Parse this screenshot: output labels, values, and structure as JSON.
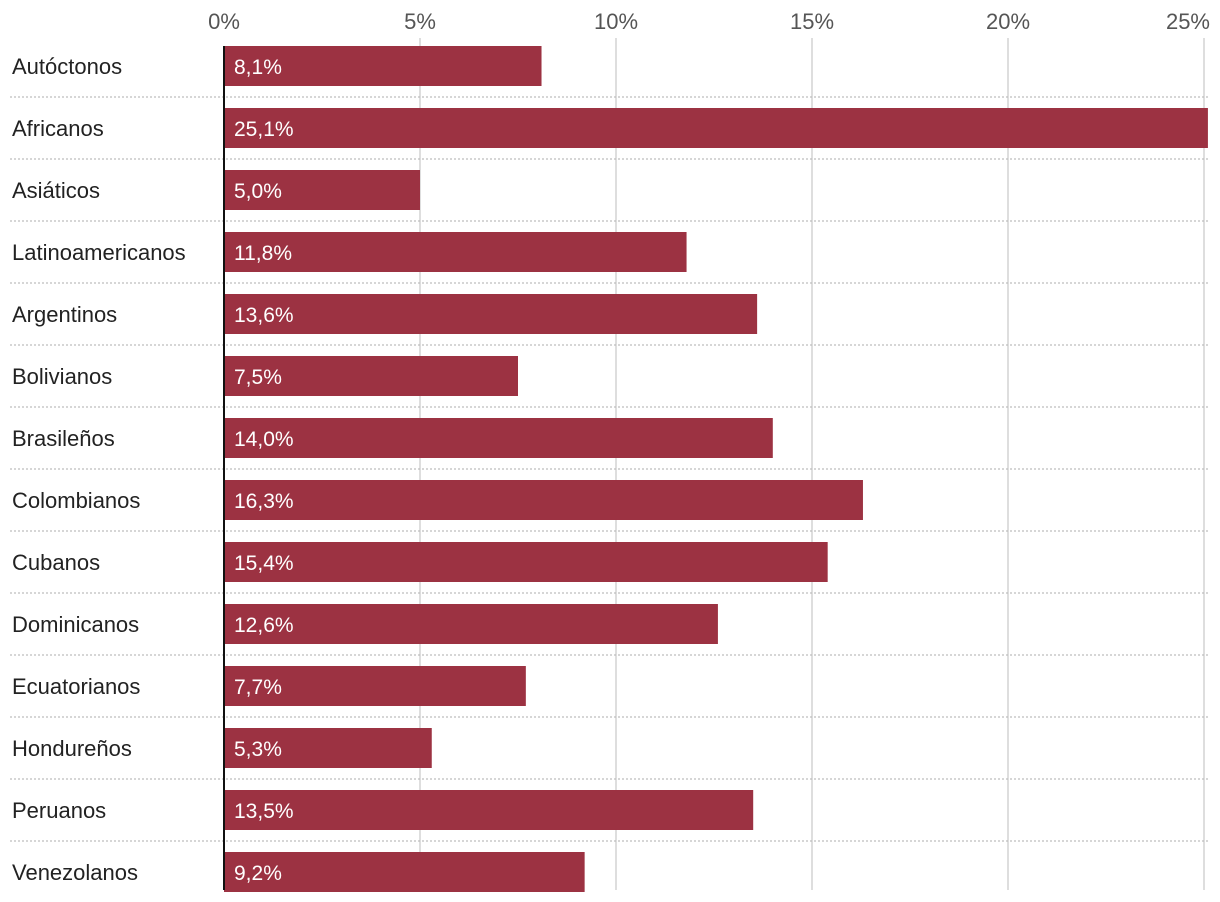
{
  "chart_data": {
    "type": "bar",
    "orientation": "horizontal",
    "title": "",
    "xlabel": "",
    "ylabel": "",
    "xlim": [
      0,
      25
    ],
    "grid": true,
    "bar_color": "#9c3242",
    "tick_values": [
      0,
      5,
      10,
      15,
      20,
      25
    ],
    "tick_labels": [
      "0%",
      "5%",
      "10%",
      "15%",
      "20%",
      "25%"
    ],
    "categories": [
      "Autóctonos",
      "Africanos",
      "Asiáticos",
      "Latinoamericanos",
      "Argentinos",
      "Bolivianos",
      "Brasileños",
      "Colombianos",
      "Cubanos",
      "Dominicanos",
      "Ecuatorianos",
      "Hondureños",
      "Peruanos",
      "Venezolanos"
    ],
    "values": [
      8.1,
      25.1,
      5.0,
      11.8,
      13.6,
      7.5,
      14.0,
      16.3,
      15.4,
      12.6,
      7.7,
      5.3,
      13.5,
      9.2
    ],
    "value_labels": [
      "8,1%",
      "25,1%",
      "5,0%",
      "11,8%",
      "13,6%",
      "7,5%",
      "14,0%",
      "16,3%",
      "15,4%",
      "12,6%",
      "7,7%",
      "5,3%",
      "13,5%",
      "9,2%"
    ]
  }
}
